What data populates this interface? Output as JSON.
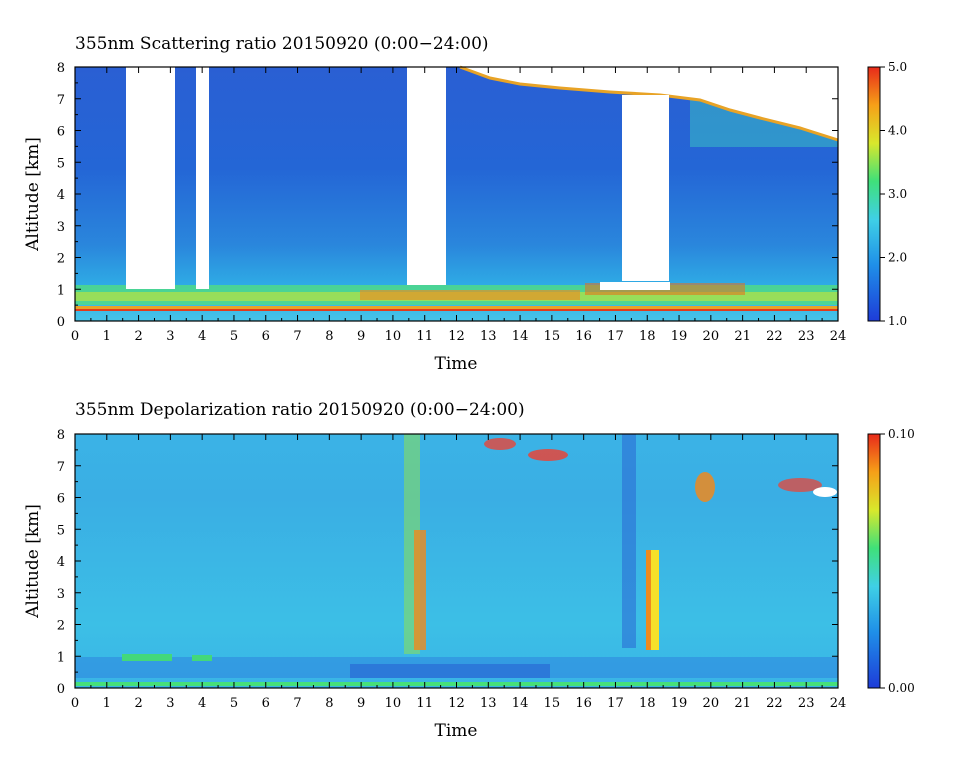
{
  "chart_data": [
    {
      "type": "heatmap",
      "title": "355nm Scattering ratio  20150920 (0:00−24:00)",
      "xlabel": "Time",
      "ylabel": "Altitude [km]",
      "xlim": [
        0,
        24
      ],
      "ylim": [
        0,
        8
      ],
      "x_ticks": [
        "0",
        "1",
        "2",
        "3",
        "4",
        "5",
        "6",
        "7",
        "8",
        "9",
        "10",
        "11",
        "12",
        "13",
        "14",
        "15",
        "16",
        "17",
        "18",
        "19",
        "20",
        "21",
        "22",
        "23",
        "24"
      ],
      "y_ticks": [
        "0",
        "1",
        "2",
        "3",
        "4",
        "5",
        "6",
        "7",
        "8"
      ],
      "colorbar": {
        "min": 1.0,
        "max": 5.0,
        "ticks": [
          "1.0",
          "2.0",
          "3.0",
          "4.0",
          "5.0"
        ]
      },
      "no_data_intervals": [
        [
          1.6,
          3.1
        ],
        [
          3.8,
          4.2
        ],
        [
          10.4,
          11.6
        ],
        [
          17.2,
          18.7
        ]
      ],
      "features": {
        "boundary_layer_top_km": 1.0,
        "high_cloud_start_time": 12.2,
        "high_cloud_base_km": 6.0
      }
    },
    {
      "type": "heatmap",
      "title": "355nm Depolarization ratio  20150920 (0:00−24:00)",
      "xlabel": "Time",
      "ylabel": "Altitude [km]",
      "xlim": [
        0,
        24
      ],
      "ylim": [
        0,
        8
      ],
      "x_ticks": [
        "0",
        "1",
        "2",
        "3",
        "4",
        "5",
        "6",
        "7",
        "8",
        "9",
        "10",
        "11",
        "12",
        "13",
        "14",
        "15",
        "16",
        "17",
        "18",
        "19",
        "20",
        "21",
        "22",
        "23",
        "24"
      ],
      "y_ticks": [
        "0",
        "1",
        "2",
        "3",
        "4",
        "5",
        "6",
        "7",
        "8"
      ],
      "colorbar": {
        "min": 0.0,
        "max": 0.1,
        "ticks": [
          "0.00",
          "0.10"
        ]
      },
      "features": {
        "high_depol_columns_time": [
          10.9,
          17.4,
          18.1
        ],
        "high_cloud_start_time": 12.5
      }
    }
  ]
}
